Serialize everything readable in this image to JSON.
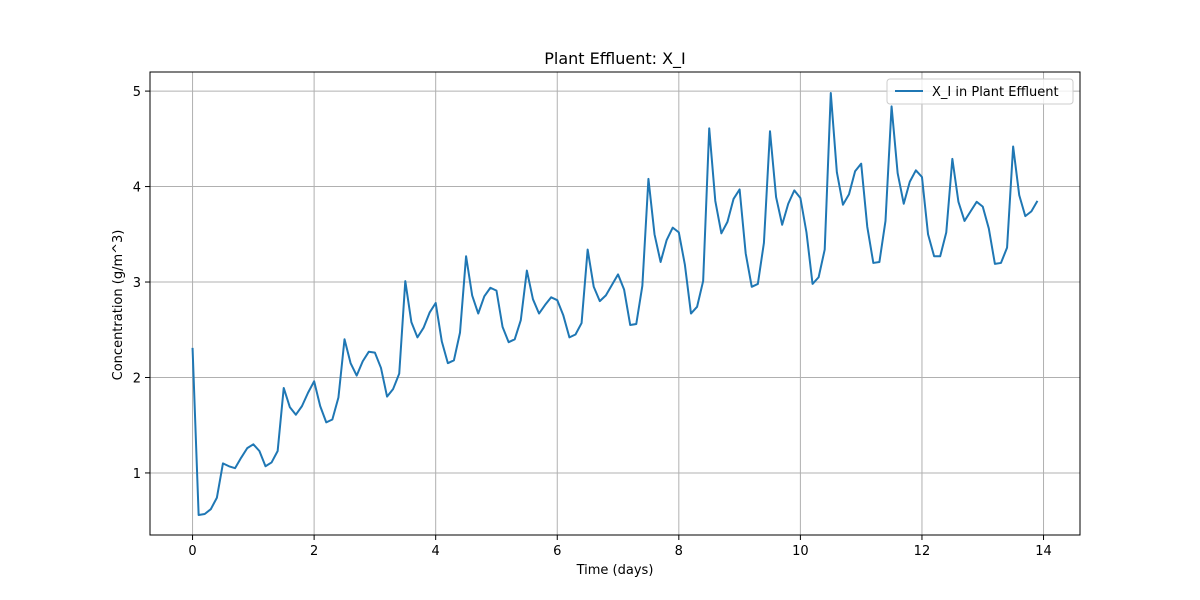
{
  "colors": {
    "series": "#1f77b4",
    "grid": "#b0b0b0",
    "axis": "#000000"
  },
  "chart_data": {
    "type": "line",
    "title": "Plant Effluent: X_I",
    "xlabel": "Time (days)",
    "ylabel": "Concentration (g/m^3)",
    "xlim": [
      -0.7,
      14.6
    ],
    "ylim": [
      0.35,
      5.2
    ],
    "xticks": [
      0,
      2,
      4,
      6,
      8,
      10,
      12,
      14
    ],
    "yticks": [
      1,
      2,
      3,
      4,
      5
    ],
    "grid": true,
    "legend_position": "top-right",
    "series": [
      {
        "name": "X_I in Plant Effluent",
        "x": [
          0,
          0.1,
          0.2,
          0.3,
          0.4,
          0.5,
          0.6,
          0.7,
          0.8,
          0.9,
          1.0,
          1.1,
          1.2,
          1.3,
          1.4,
          1.5,
          1.6,
          1.7,
          1.8,
          1.9,
          2.0,
          2.1,
          2.2,
          2.3,
          2.4,
          2.5,
          2.6,
          2.7,
          2.8,
          2.9,
          3.0,
          3.1,
          3.2,
          3.3,
          3.4,
          3.5,
          3.6,
          3.7,
          3.8,
          3.9,
          4.0,
          4.1,
          4.2,
          4.3,
          4.4,
          4.5,
          4.6,
          4.7,
          4.8,
          4.9,
          5.0,
          5.1,
          5.2,
          5.3,
          5.4,
          5.5,
          5.6,
          5.7,
          5.8,
          5.9,
          6.0,
          6.1,
          6.2,
          6.3,
          6.4,
          6.5,
          6.6,
          6.7,
          6.8,
          6.9,
          7.0,
          7.1,
          7.2,
          7.3,
          7.4,
          7.5,
          7.6,
          7.7,
          7.8,
          7.9,
          8.0,
          8.1,
          8.2,
          8.3,
          8.4,
          8.5,
          8.6,
          8.7,
          8.8,
          8.9,
          9.0,
          9.1,
          9.2,
          9.3,
          9.4,
          9.5,
          9.6,
          9.7,
          9.8,
          9.9,
          10.0,
          10.1,
          10.2,
          10.3,
          10.4,
          10.5,
          10.6,
          10.7,
          10.8,
          10.9,
          11.0,
          11.1,
          11.2,
          11.3,
          11.4,
          11.5,
          11.6,
          11.7,
          11.8,
          11.9,
          12.0,
          12.1,
          12.2,
          12.3,
          12.4,
          12.5,
          12.6,
          12.7,
          12.8,
          12.9,
          13.0,
          13.1,
          13.2,
          13.3,
          13.4,
          13.5,
          13.6,
          13.7,
          13.8,
          13.9
        ],
        "y": [
          2.31,
          0.56,
          0.57,
          0.62,
          0.74,
          1.1,
          1.07,
          1.05,
          1.16,
          1.26,
          1.3,
          1.23,
          1.07,
          1.11,
          1.23,
          1.89,
          1.69,
          1.61,
          1.7,
          1.84,
          1.96,
          1.7,
          1.53,
          1.56,
          1.79,
          2.4,
          2.15,
          2.02,
          2.17,
          2.27,
          2.26,
          2.1,
          1.8,
          1.88,
          2.04,
          3.01,
          2.58,
          2.42,
          2.52,
          2.68,
          2.78,
          2.38,
          2.15,
          2.18,
          2.47,
          3.27,
          2.86,
          2.67,
          2.85,
          2.94,
          2.91,
          2.53,
          2.37,
          2.4,
          2.6,
          3.12,
          2.82,
          2.67,
          2.76,
          2.84,
          2.81,
          2.65,
          2.42,
          2.45,
          2.57,
          3.34,
          2.95,
          2.8,
          2.86,
          2.97,
          3.08,
          2.92,
          2.55,
          2.56,
          2.96,
          4.08,
          3.5,
          3.21,
          3.44,
          3.57,
          3.52,
          3.18,
          2.67,
          2.74,
          3.01,
          4.61,
          3.85,
          3.51,
          3.63,
          3.87,
          3.97,
          3.3,
          2.95,
          2.98,
          3.41,
          4.58,
          3.89,
          3.6,
          3.82,
          3.96,
          3.88,
          3.52,
          2.98,
          3.05,
          3.34,
          4.98,
          4.15,
          3.81,
          3.92,
          4.16,
          4.24,
          3.58,
          3.2,
          3.21,
          3.64,
          4.84,
          4.14,
          3.82,
          4.05,
          4.17,
          4.1,
          3.5,
          3.27,
          3.27,
          3.52,
          4.29,
          3.84,
          3.64,
          3.74,
          3.84,
          3.79,
          3.56,
          3.19,
          3.2,
          3.36,
          4.42,
          3.91,
          3.69,
          3.74,
          3.85
        ]
      }
    ]
  }
}
